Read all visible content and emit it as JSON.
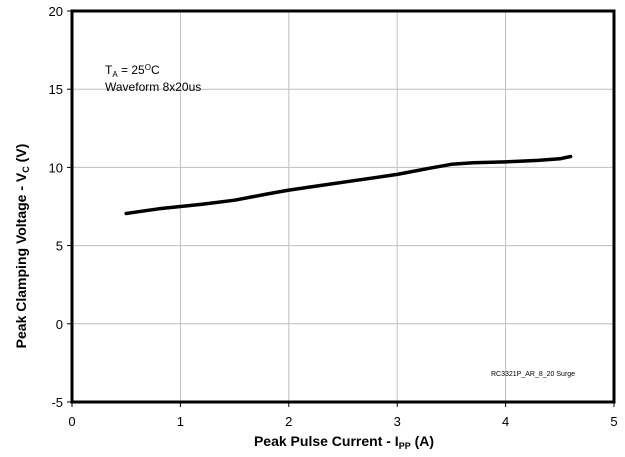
{
  "chart_data": {
    "type": "line",
    "title": "",
    "xlabel": {
      "main": "Peak Pulse Current - I",
      "sub": "PP",
      "unit": " (A)"
    },
    "ylabel": {
      "main": "Peak Clamping Voltage - V",
      "sub": "C",
      "unit": " (V)"
    },
    "xlim": [
      0,
      5
    ],
    "ylim": [
      -5,
      20
    ],
    "xticks": [
      0,
      1,
      2,
      3,
      4,
      5
    ],
    "yticks": [
      -5,
      0,
      5,
      10,
      15,
      20
    ],
    "grid": true,
    "legend": "none",
    "colors": {
      "line": "#000000",
      "grid": "#bfbfbf",
      "frame": "#000000"
    },
    "annotations": {
      "temp_prefix": "T",
      "temp_sub": "A",
      "temp_value": " = 25",
      "temp_deg": "O",
      "temp_unit": "C",
      "waveform": "Waveform 8x20us"
    },
    "watermark": "RC3321P_AR_8_20 Surge",
    "series": [
      {
        "x": [
          0.5,
          0.8,
          1.0,
          1.2,
          1.5,
          1.8,
          2.0,
          2.3,
          2.6,
          3.0,
          3.3,
          3.5,
          3.7,
          4.0,
          4.3,
          4.5,
          4.6
        ],
        "y": [
          7.05,
          7.35,
          7.5,
          7.65,
          7.9,
          8.3,
          8.55,
          8.85,
          9.15,
          9.55,
          9.95,
          10.2,
          10.3,
          10.35,
          10.45,
          10.55,
          10.7
        ]
      }
    ]
  }
}
